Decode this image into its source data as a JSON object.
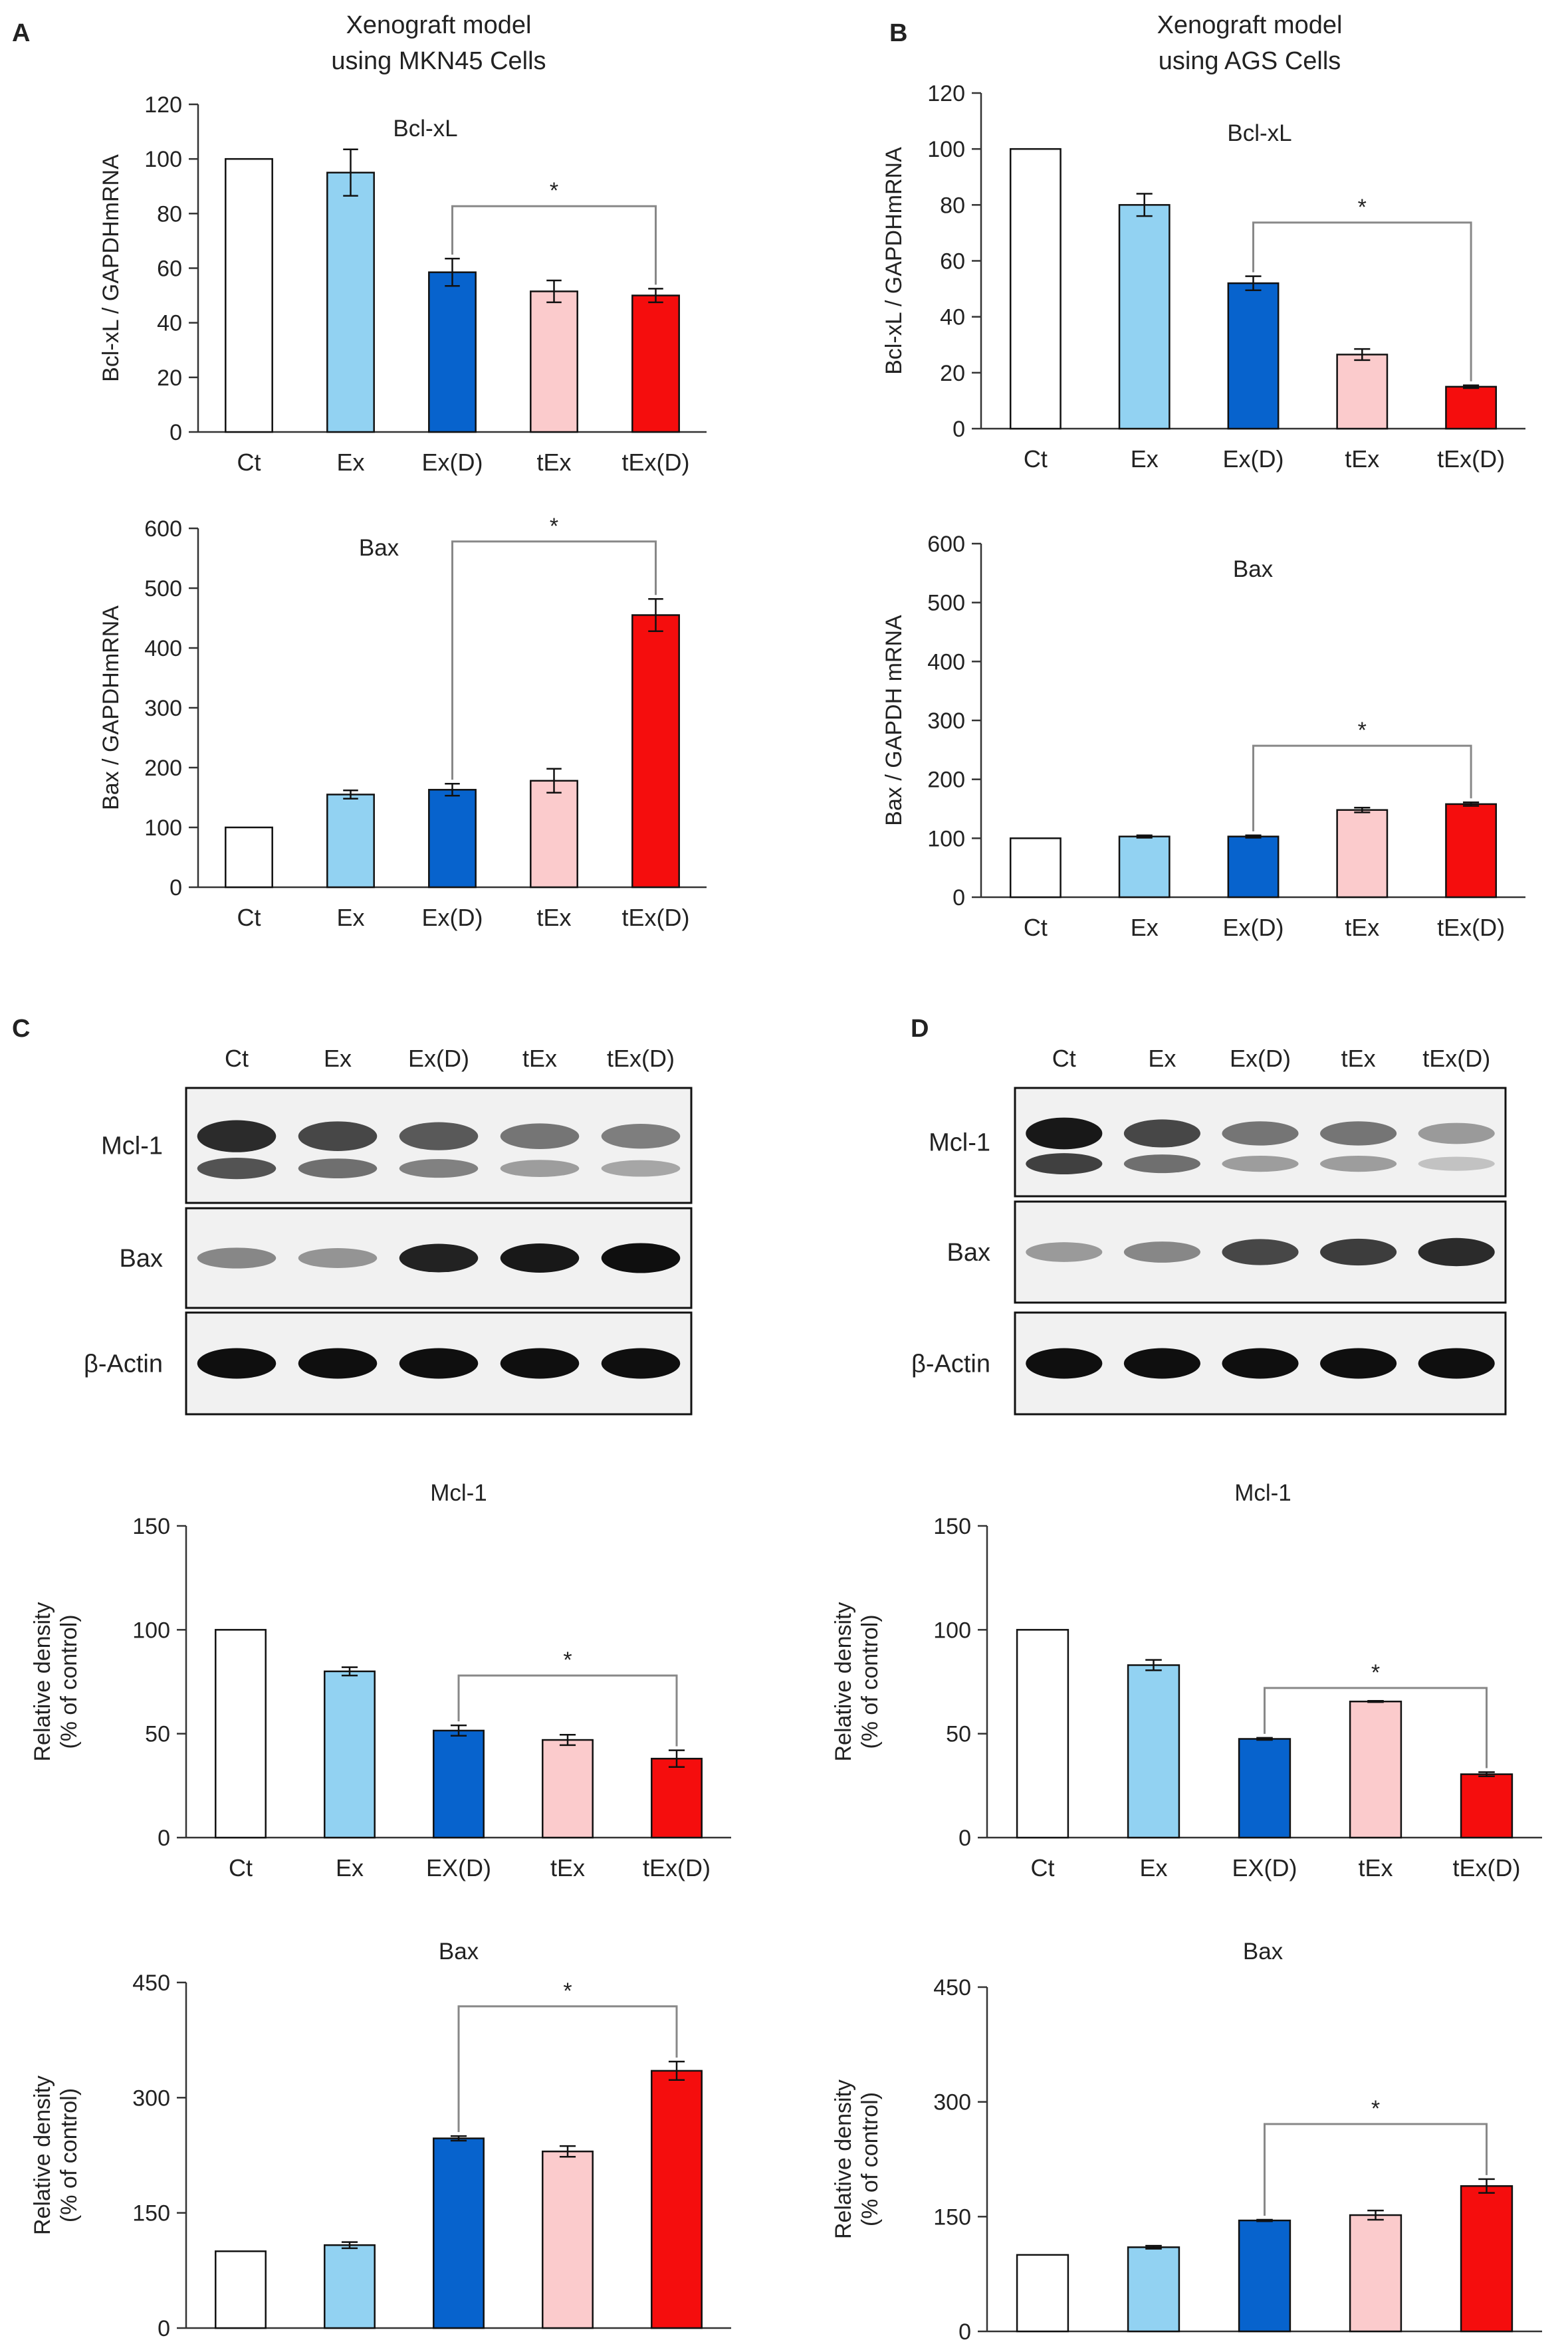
{
  "panels": {
    "A": {
      "letter": "A",
      "header_line1": "Xenograft model",
      "header_line2": "using MKN45 Cells"
    },
    "B": {
      "letter": "B",
      "header_line1": "Xenograft model",
      "header_line2": "using AGS Cells"
    },
    "C": {
      "letter": "C"
    },
    "D": {
      "letter": "D"
    }
  },
  "colors": {
    "Ct": "#ffffff",
    "Ex": "#92d2f2",
    "ExD": "#0763cd",
    "tEx": "#fbcbcc",
    "tExD": "#f50d0d",
    "axis": "#333333",
    "bracket": "#888888"
  },
  "blots": [
    {
      "panel": "C",
      "columns": [
        "Ct",
        "Ex",
        "Ex(D)",
        "tEx",
        "tEx(D)"
      ],
      "rows": [
        {
          "label": "Mcl-1",
          "intensity": [
            0.85,
            0.7,
            0.6,
            0.45,
            0.4
          ]
        },
        {
          "label": "Bax",
          "intensity": [
            0.35,
            0.28,
            0.9,
            0.95,
            1.0
          ]
        },
        {
          "label": "β-Actin",
          "intensity": [
            1.0,
            1.0,
            1.0,
            1.0,
            1.0
          ]
        }
      ]
    },
    {
      "panel": "D",
      "columns": [
        "Ct",
        "Ex",
        "Ex(D)",
        "tEx",
        "tEx(D)"
      ],
      "rows": [
        {
          "label": "Mcl-1",
          "intensity": [
            0.95,
            0.7,
            0.45,
            0.45,
            0.25
          ]
        },
        {
          "label": "Bax",
          "intensity": [
            0.25,
            0.35,
            0.7,
            0.75,
            0.85
          ]
        },
        {
          "label": "β-Actin",
          "intensity": [
            1.0,
            1.0,
            1.0,
            1.0,
            1.0
          ]
        }
      ]
    }
  ],
  "chart_data": [
    {
      "id": "A-bclxl",
      "panel": "A",
      "type": "bar",
      "title": "Bcl-xL",
      "categories": [
        "Ct",
        "Ex",
        "Ex(D)",
        "tEx",
        "tEx(D)"
      ],
      "values": [
        100,
        95,
        58.5,
        51.5,
        50
      ],
      "errors": [
        0,
        8.5,
        5,
        4,
        2.5
      ],
      "ylabel": "Bcl-xL / GAPDHmRNA",
      "ylim": [
        0,
        120
      ],
      "yticks": [
        "0",
        "20",
        "40",
        "60",
        "80",
        "100",
        "120"
      ],
      "significance": {
        "from": 2,
        "to": 4,
        "label": "*"
      }
    },
    {
      "id": "A-bax",
      "panel": "A",
      "type": "bar",
      "title": "Bax",
      "categories": [
        "Ct",
        "Ex",
        "Ex(D)",
        "tEx",
        "tEx(D)"
      ],
      "values": [
        100,
        155,
        163,
        178,
        455
      ],
      "errors": [
        0,
        7,
        10,
        20,
        27
      ],
      "ylabel": "Bax / GAPDHmRNA",
      "ylim": [
        0,
        600
      ],
      "yticks": [
        "0",
        "100",
        "200",
        "300",
        "400",
        "500",
        "600"
      ],
      "significance": {
        "from": 2,
        "to": 4,
        "label": "*"
      }
    },
    {
      "id": "B-bclxl",
      "panel": "B",
      "type": "bar",
      "title": "Bcl-xL",
      "categories": [
        "Ct",
        "Ex",
        "Ex(D)",
        "tEx",
        "tEx(D)"
      ],
      "values": [
        100,
        80,
        52,
        26.5,
        15
      ],
      "errors": [
        0,
        4,
        2.5,
        2,
        0.5
      ],
      "ylabel": "Bcl-xL / GAPDHmRNA",
      "ylim": [
        0,
        120
      ],
      "yticks": [
        "0",
        "20",
        "40",
        "60",
        "80",
        "100",
        "120"
      ],
      "significance": {
        "from": 2,
        "to": 4,
        "label": "*"
      }
    },
    {
      "id": "B-bax",
      "panel": "B",
      "type": "bar",
      "title": "Bax",
      "categories": [
        "Ct",
        "Ex",
        "Ex(D)",
        "tEx",
        "tEx(D)"
      ],
      "values": [
        100,
        103,
        103,
        148,
        158
      ],
      "errors": [
        0,
        2,
        2,
        4,
        3
      ],
      "ylabel": "Bax / GAPDH mRNA",
      "ylim": [
        0,
        600
      ],
      "yticks": [
        "0",
        "100",
        "200",
        "300",
        "400",
        "500",
        "600"
      ],
      "significance": {
        "from": 2,
        "to": 4,
        "label": "*"
      }
    },
    {
      "id": "C-mcl1",
      "panel": "C",
      "type": "bar",
      "title": "Mcl-1",
      "categories": [
        "Ct",
        "Ex",
        "EX(D)",
        "tEx",
        "tEx(D)"
      ],
      "values": [
        100,
        80,
        51.5,
        47,
        38
      ],
      "errors": [
        0,
        2,
        2.5,
        2.5,
        4
      ],
      "ylabel_line1": "Relative density",
      "ylabel_line2": "(% of control)",
      "ylim": [
        0,
        150
      ],
      "yticks": [
        "0",
        "50",
        "100",
        "150"
      ],
      "significance": {
        "from": 2,
        "to": 4,
        "label": "*"
      }
    },
    {
      "id": "D-mcl1",
      "panel": "D",
      "type": "bar",
      "title": "Mcl-1",
      "categories": [
        "Ct",
        "Ex",
        "EX(D)",
        "tEx",
        "tEx(D)"
      ],
      "values": [
        100,
        83,
        47.5,
        65.5,
        30.5
      ],
      "errors": [
        0,
        2.5,
        0.5,
        0.3,
        1
      ],
      "ylabel_line1": "Relative density",
      "ylabel_line2": "(% of control)",
      "ylim": [
        0,
        150
      ],
      "yticks": [
        "0",
        "50",
        "100",
        "150"
      ],
      "significance": {
        "from": 2,
        "to": 4,
        "label": "*"
      }
    },
    {
      "id": "C-bax",
      "panel": "C",
      "type": "bar",
      "title": "Bax",
      "categories": [
        "Ct",
        "Ex",
        "EX(D)",
        "tEx",
        "tEx(D)"
      ],
      "values": [
        100,
        108,
        247,
        230,
        335
      ],
      "errors": [
        0,
        4,
        3,
        7,
        12
      ],
      "ylabel_line1": "Relative density",
      "ylabel_line2": "(% of control)",
      "ylim": [
        0,
        450
      ],
      "yticks": [
        "0",
        "150",
        "300",
        "450"
      ],
      "significance": {
        "from": 2,
        "to": 4,
        "label": "*"
      }
    },
    {
      "id": "D-bax",
      "panel": "D",
      "type": "bar",
      "title": "Bax",
      "categories": [
        "Ct",
        "Ex",
        "EX(D)",
        "tEx",
        "tEx(D)"
      ],
      "values": [
        100,
        110,
        145,
        152,
        190
      ],
      "errors": [
        0,
        2,
        1,
        6,
        9
      ],
      "ylabel_line1": "Relative density",
      "ylabel_line2": "(% of control)",
      "ylim": [
        0,
        450
      ],
      "yticks": [
        "0",
        "150",
        "300",
        "450"
      ],
      "significance": {
        "from": 2,
        "to": 4,
        "label": "*"
      }
    }
  ]
}
